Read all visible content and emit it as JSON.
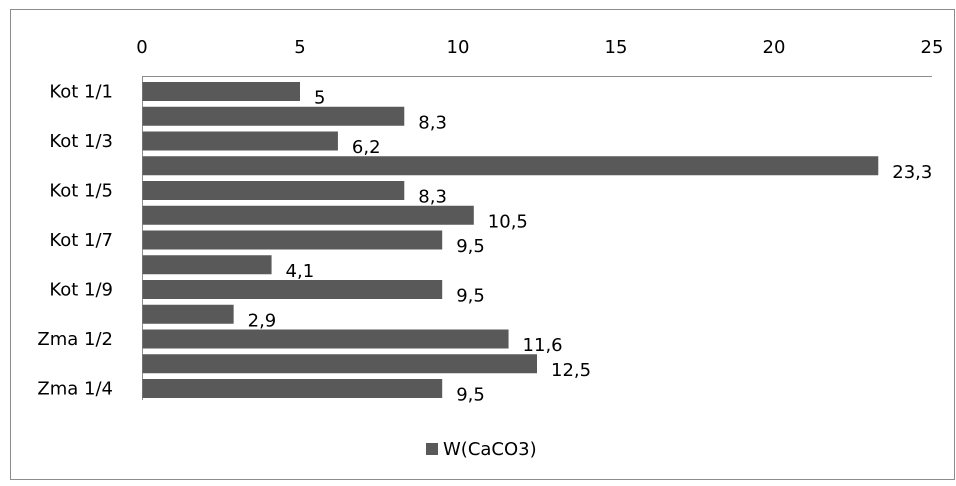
{
  "chart_data": {
    "type": "bar",
    "orientation": "horizontal",
    "categories": [
      "Kot 1/1",
      "",
      "Kot 1/3",
      "",
      "Kot 1/5",
      "",
      "Kot 1/7",
      "",
      "Kot 1/9",
      "",
      "Zma 1/2",
      "",
      "Zma 1/4"
    ],
    "series": [
      {
        "name": "W(CaCO3)",
        "color": "#595959",
        "values": [
          5,
          8.3,
          6.2,
          23.3,
          8.3,
          10.5,
          9.5,
          4.1,
          9.5,
          2.9,
          11.6,
          12.5,
          9.5
        ],
        "value_labels": [
          "5",
          "8,3",
          "6,2",
          "23,3",
          "8,3",
          "10,5",
          "9,5",
          "4,1",
          "9,5",
          "2,9",
          "11,6",
          "12,5",
          "9,5"
        ]
      }
    ],
    "xaxis_position": "top",
    "xlim": [
      0,
      25
    ],
    "xticks": [
      0,
      5,
      10,
      15,
      20,
      25
    ],
    "xtick_labels": [
      "0",
      "5",
      "10",
      "15",
      "20",
      "25"
    ],
    "grid": false,
    "legend": {
      "position": "bottom",
      "entries": [
        "W(CaCO3)"
      ]
    },
    "title": "",
    "xlabel": "",
    "ylabel": ""
  }
}
